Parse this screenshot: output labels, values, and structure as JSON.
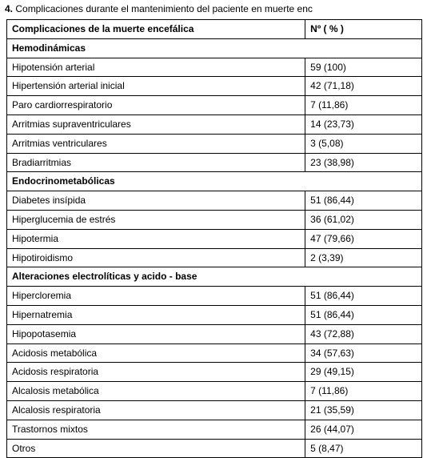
{
  "caption_prefix": "4.",
  "caption_text": " Complicaciones durante el mantenimiento del paciente en muerte enc",
  "headers": {
    "col1": "Complicaciones de la muerte encefálica",
    "col2": "Nº  ( % )"
  },
  "sections": [
    {
      "title": "Hemodinámicas",
      "rows": [
        {
          "label": "Hipotensión arterial",
          "value": "59 (100)"
        },
        {
          "label": "Hipertensión arterial inicial",
          "value": "42 (71,18)"
        },
        {
          "label": "Paro cardiorrespiratorio",
          "value": "7 (11,86)"
        },
        {
          "label": "Arritmias supraventriculares",
          "value": "14 (23,73)"
        },
        {
          "label": "Arritmias ventriculares",
          "value": "3 (5,08)"
        },
        {
          "label": "Bradiarritmias",
          "value": "23 (38,98)"
        }
      ]
    },
    {
      "title": "Endocrinometabólicas",
      "rows": [
        {
          "label": "Diabetes insípida",
          "value": "51 (86,44)"
        },
        {
          "label": "Hiperglucemia de estrés",
          "value": "36 (61,02)"
        },
        {
          "label": "Hipotermia",
          "value": "47 (79,66)"
        },
        {
          "label": "Hipotiroidismo",
          "value": "2 (3,39)"
        }
      ]
    },
    {
      "title": "Alteraciones electrolíticas y acido - base",
      "rows": [
        {
          "label": "Hipercloremia",
          "value": "51 (86,44)"
        },
        {
          "label": "Hipernatremia",
          "value": "51 (86,44)"
        },
        {
          "label": "Hipopotasemia",
          "value": "43 (72,88)"
        },
        {
          "label": "Acidosis metabólica",
          "value": "34 (57,63)"
        },
        {
          "label": "Acidosis respiratoria",
          "value": "29 (49,15)"
        },
        {
          "label": "Alcalosis metabólica",
          "value": "7 (11,86)"
        },
        {
          "label": "Alcalosis respiratoria",
          "value": "21 (35,59)"
        },
        {
          "label": "Trastornos mixtos",
          "value": "26 (44,07)"
        },
        {
          "label": "Otros",
          "value": "5 (8,47)"
        }
      ]
    }
  ]
}
